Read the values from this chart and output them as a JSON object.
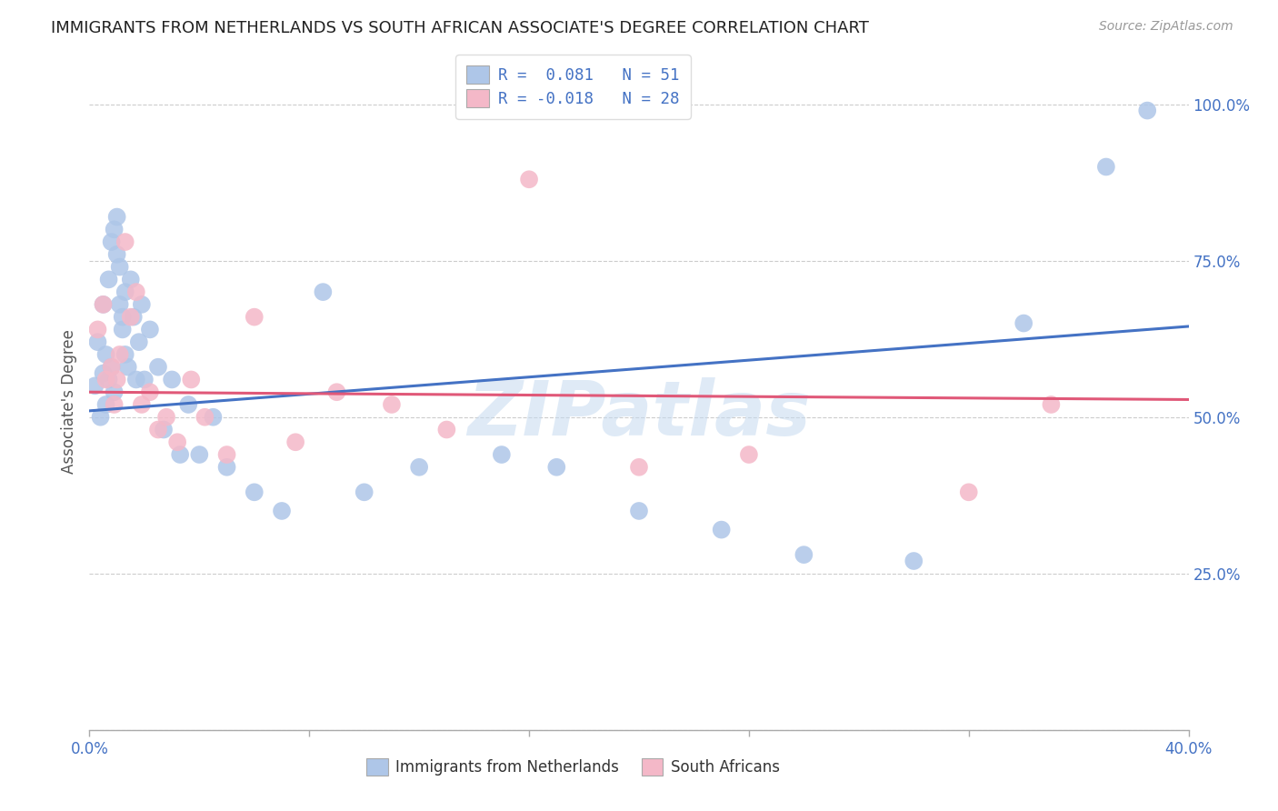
{
  "title": "IMMIGRANTS FROM NETHERLANDS VS SOUTH AFRICAN ASSOCIATE'S DEGREE CORRELATION CHART",
  "source": "Source: ZipAtlas.com",
  "ylabel": "Associate's Degree",
  "xmin": 0.0,
  "xmax": 0.4,
  "ymin": 0.0,
  "ymax": 1.05,
  "ytick_vals": [
    0.0,
    0.25,
    0.5,
    0.75,
    1.0
  ],
  "ytick_labels": [
    "",
    "25.0%",
    "50.0%",
    "75.0%",
    "100.0%"
  ],
  "xtick_vals": [
    0.0,
    0.08,
    0.16,
    0.24,
    0.32,
    0.4
  ],
  "xtick_labels": [
    "0.0%",
    "",
    "",
    "",
    "",
    "40.0%"
  ],
  "legend_r1": "R =  0.081",
  "legend_n1": "N = 51",
  "legend_r2": "R = -0.018",
  "legend_n2": "N = 28",
  "blue_color": "#aec6e8",
  "pink_color": "#f4b8c8",
  "blue_line_color": "#4472c4",
  "pink_line_color": "#e05878",
  "axis_label_color": "#4472c4",
  "watermark": "ZIPatlas",
  "blue_x": [
    0.002,
    0.003,
    0.004,
    0.005,
    0.005,
    0.006,
    0.006,
    0.007,
    0.007,
    0.008,
    0.008,
    0.009,
    0.009,
    0.01,
    0.01,
    0.011,
    0.011,
    0.012,
    0.012,
    0.013,
    0.013,
    0.014,
    0.015,
    0.016,
    0.017,
    0.018,
    0.019,
    0.02,
    0.022,
    0.025,
    0.027,
    0.03,
    0.033,
    0.036,
    0.04,
    0.045,
    0.05,
    0.06,
    0.07,
    0.085,
    0.1,
    0.12,
    0.15,
    0.17,
    0.2,
    0.23,
    0.26,
    0.3,
    0.34,
    0.37,
    0.385
  ],
  "blue_y": [
    0.55,
    0.62,
    0.5,
    0.57,
    0.68,
    0.52,
    0.6,
    0.56,
    0.72,
    0.58,
    0.78,
    0.54,
    0.8,
    0.76,
    0.82,
    0.68,
    0.74,
    0.64,
    0.66,
    0.6,
    0.7,
    0.58,
    0.72,
    0.66,
    0.56,
    0.62,
    0.68,
    0.56,
    0.64,
    0.58,
    0.48,
    0.56,
    0.44,
    0.52,
    0.44,
    0.5,
    0.42,
    0.38,
    0.35,
    0.7,
    0.38,
    0.42,
    0.44,
    0.42,
    0.35,
    0.32,
    0.28,
    0.27,
    0.65,
    0.9,
    0.99
  ],
  "pink_x": [
    0.003,
    0.005,
    0.006,
    0.008,
    0.009,
    0.01,
    0.011,
    0.013,
    0.015,
    0.017,
    0.019,
    0.022,
    0.025,
    0.028,
    0.032,
    0.037,
    0.042,
    0.05,
    0.06,
    0.075,
    0.09,
    0.11,
    0.13,
    0.16,
    0.2,
    0.24,
    0.32,
    0.35
  ],
  "pink_y": [
    0.64,
    0.68,
    0.56,
    0.58,
    0.52,
    0.56,
    0.6,
    0.78,
    0.66,
    0.7,
    0.52,
    0.54,
    0.48,
    0.5,
    0.46,
    0.56,
    0.5,
    0.44,
    0.66,
    0.46,
    0.54,
    0.52,
    0.48,
    0.88,
    0.42,
    0.44,
    0.38,
    0.52
  ],
  "blue_line_x0": 0.0,
  "blue_line_y0": 0.51,
  "blue_line_x1": 0.4,
  "blue_line_y1": 0.645,
  "pink_line_x0": 0.0,
  "pink_line_y0": 0.54,
  "pink_line_x1": 0.4,
  "pink_line_y1": 0.528
}
